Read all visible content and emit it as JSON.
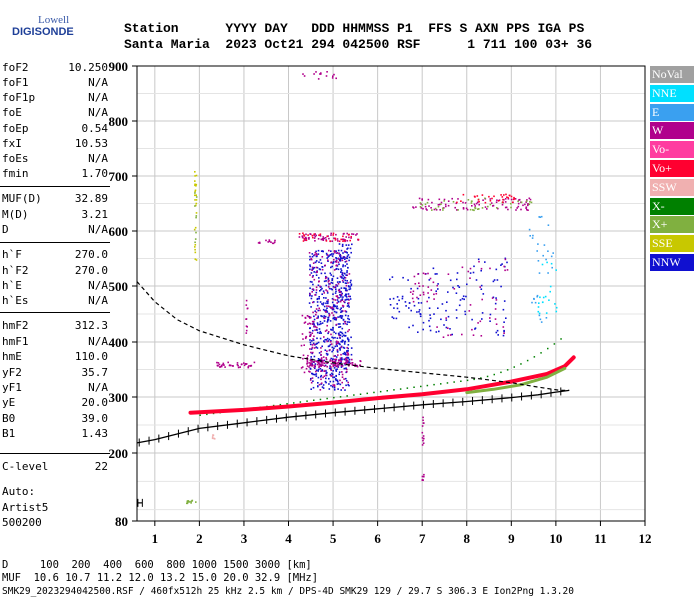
{
  "logo": {
    "line1": "Lowell",
    "line2": "DIGISONDE"
  },
  "header": {
    "row1": "Station      YYYY DAY   DDD HHMMSS P1  FFS S AXN PPS IGA PS",
    "row2": "Santa Maria  2023 Oct21 294 042500 RSF      1 711 100 03+ 36"
  },
  "params": [
    {
      "key": "foF2",
      "value": "10.250"
    },
    {
      "key": "foF1",
      "value": "N/A"
    },
    {
      "key": "foF1p",
      "value": "N/A"
    },
    {
      "key": "foE",
      "value": "N/A"
    },
    {
      "key": "foEp",
      "value": "0.54"
    },
    {
      "key": "fxI",
      "value": "10.53"
    },
    {
      "key": "foEs",
      "value": "N/A"
    },
    {
      "key": "fmin",
      "value": "1.70"
    },
    {
      "key": "MUF(D)",
      "value": "32.89"
    },
    {
      "key": "M(D)",
      "value": "3.21"
    },
    {
      "key": "D",
      "value": "N/A"
    },
    {
      "key": "h`F",
      "value": "270.0"
    },
    {
      "key": "h`F2",
      "value": "270.0"
    },
    {
      "key": "h`E",
      "value": "N/A"
    },
    {
      "key": "h`Es",
      "value": "N/A"
    },
    {
      "key": "hmF2",
      "value": "312.3"
    },
    {
      "key": "hmF1",
      "value": "N/A"
    },
    {
      "key": "hmE",
      "value": "110.0"
    },
    {
      "key": "yF2",
      "value": "35.7"
    },
    {
      "key": "yF1",
      "value": "N/A"
    },
    {
      "key": "yE",
      "value": "20.0"
    },
    {
      "key": "B0",
      "value": "39.0"
    },
    {
      "key": "B1",
      "value": "1.43"
    },
    {
      "key": "C-level",
      "value": "22"
    }
  ],
  "auto": {
    "line1": "Auto:",
    "line2": "Artist5",
    "line3": "500200"
  },
  "footer": {
    "d_row": "D     100  200  400  600  800 1000 1500 3000 [km]",
    "muf_row": "MUF  10.6 10.7 11.2 12.0 13.2 15.0 20.0 32.9 [MHz]",
    "file_row": "SMK29_2023294042500.RSF / 460fx512h 25 kHz 2.5 km / DPS-4D SMK29 129 / 29.7 S 306.3 E Ion2Png 1.3.20"
  },
  "legend": [
    {
      "label": "NoVal",
      "color": "#a0a0a0"
    },
    {
      "label": "NNE",
      "color": "#00e0ff"
    },
    {
      "label": "E",
      "color": "#3aa0f0"
    },
    {
      "label": "W",
      "color": "#b0008c"
    },
    {
      "label": "Vo-",
      "color": "#ff3ca0"
    },
    {
      "label": "Vo+",
      "color": "#ff0030"
    },
    {
      "label": "SSW",
      "color": "#f0b0b0"
    },
    {
      "label": "X-",
      "color": "#008000"
    },
    {
      "label": "X+",
      "color": "#80b040"
    },
    {
      "label": "SSE",
      "color": "#c8c800"
    },
    {
      "label": "NNW",
      "color": "#1010d0"
    }
  ],
  "chart_data": {
    "type": "scatter",
    "x_ticks": [
      "1",
      "2",
      "3",
      "4",
      "5",
      "6",
      "7",
      "8",
      "9",
      "10",
      "11",
      "12"
    ],
    "y_ticks": [
      "80",
      "200",
      "300",
      "400",
      "500",
      "600",
      "700",
      "800",
      "900"
    ],
    "xlim": [
      0.6,
      12
    ],
    "y_scale_values": [
      80,
      200,
      300,
      400,
      500,
      600,
      700,
      800,
      900
    ],
    "grid": true,
    "series": [
      {
        "name": "Vo+",
        "color": "#ff0030",
        "values": [
          [
            1.8,
            272
          ],
          [
            3,
            277
          ],
          [
            4,
            283
          ],
          [
            5,
            290
          ],
          [
            6,
            298
          ],
          [
            7,
            305
          ],
          [
            8,
            314
          ],
          [
            9,
            328
          ],
          [
            9.8,
            342
          ],
          [
            10.2,
            356
          ],
          [
            10.4,
            372
          ]
        ]
      },
      {
        "name": "X+",
        "color": "#80b040",
        "values": [
          [
            8,
            308
          ],
          [
            8.6,
            314
          ],
          [
            9.2,
            322
          ],
          [
            9.8,
            336
          ],
          [
            10.2,
            352
          ]
        ]
      }
    ],
    "profile": [
      [
        0.6,
        508
      ],
      [
        1,
        472
      ],
      [
        1.5,
        440
      ],
      [
        2,
        420
      ],
      [
        3,
        395
      ],
      [
        4,
        375
      ],
      [
        5,
        362
      ],
      [
        6,
        352
      ],
      [
        7,
        344
      ],
      [
        8,
        336
      ],
      [
        9,
        326
      ],
      [
        9.6,
        318
      ],
      [
        10.1,
        312
      ],
      [
        10.3,
        312
      ]
    ],
    "virtual_height_trace": [
      [
        0.6,
        218
      ],
      [
        1,
        224
      ],
      [
        1.5,
        234
      ],
      [
        2,
        244
      ],
      [
        3,
        254
      ],
      [
        4,
        264
      ],
      [
        5,
        272
      ],
      [
        6,
        279
      ],
      [
        7,
        286
      ],
      [
        8,
        292
      ],
      [
        9,
        299
      ],
      [
        9.6,
        304
      ],
      [
        10,
        309
      ],
      [
        10.3,
        312
      ]
    ]
  }
}
